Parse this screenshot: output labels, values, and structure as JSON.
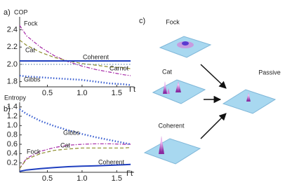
{
  "chart_data": [
    {
      "type": "line",
      "label": "a)",
      "ylabel": "COP",
      "xlabel": "Γt",
      "x": [
        0.1,
        0.2,
        0.4,
        0.6,
        0.8,
        1.0,
        1.2,
        1.4,
        1.6,
        1.7
      ],
      "xlim": [
        0.1,
        1.75
      ],
      "xticks": [
        0.5,
        {
          "value": 1.0,
          "label": "1.0"
        },
        1.5
      ],
      "ylim": [
        1.74,
        2.55
      ],
      "yticks": [
        1.8,
        {
          "value": 2.0,
          "label": "2.0"
        },
        2.2,
        2.4
      ],
      "series": [
        {
          "name": "Fock",
          "color": "#a526a5",
          "dash": "dashdot",
          "width": 1.2,
          "values": [
            2.45,
            2.33,
            2.2,
            2.1,
            2.03,
            1.98,
            1.94,
            1.91,
            1.88,
            1.87
          ]
        },
        {
          "name": "Cat",
          "color": "#8c8c2c",
          "dash": "dashed",
          "width": 1.2,
          "values": [
            2.28,
            2.22,
            2.14,
            2.08,
            2.04,
            2.01,
            1.99,
            1.97,
            1.96,
            1.95
          ]
        },
        {
          "name": "Coherent",
          "color": "#1f3fbf",
          "dash": "solid",
          "width": 2,
          "values": [
            2.04,
            2.04,
            2.04,
            2.04,
            2.04,
            2.04,
            2.04,
            2.04,
            2.04,
            2.04
          ]
        },
        {
          "name": "Carnot",
          "color": "#6c8fb0",
          "dash": "dotted",
          "width": 1.2,
          "values": [
            2.0,
            2.0,
            2.0,
            2.0,
            2.0,
            2.0,
            2.0,
            2.0,
            2.0,
            2.0
          ]
        },
        {
          "name": "Gibbs",
          "color": "#3a5fd0",
          "dash": "dotted",
          "width": 2.5,
          "values": [
            1.87,
            1.86,
            1.85,
            1.84,
            1.83,
            1.82,
            1.8,
            1.78,
            1.77,
            1.76
          ]
        }
      ]
    },
    {
      "type": "line",
      "label": "b)",
      "ylabel": "Entropy",
      "xlabel": "Γt",
      "x": [
        0.1,
        0.2,
        0.4,
        0.6,
        0.8,
        1.0,
        1.2,
        1.4,
        1.6,
        1.7
      ],
      "xlim": [
        0.1,
        1.75
      ],
      "xticks": [
        0.5,
        {
          "value": 1.0,
          "label": "1.0"
        },
        1.5
      ],
      "ylim": [
        0,
        1.5
      ],
      "yticks": [
        0.2,
        0.4,
        0.6,
        0.8,
        {
          "value": 1.0,
          "label": "1.0"
        },
        1.2,
        1.4
      ],
      "series": [
        {
          "name": "Gibbs",
          "color": "#3a5fd0",
          "dash": "dotted",
          "width": 2.5,
          "values": [
            1.35,
            1.25,
            1.1,
            0.99,
            0.9,
            0.82,
            0.75,
            0.69,
            0.63,
            0.6
          ]
        },
        {
          "name": "Fock",
          "color": "#a526a5",
          "dash": "dashdot",
          "width": 1.2,
          "values": [
            0.08,
            0.3,
            0.45,
            0.53,
            0.58,
            0.6,
            0.61,
            0.61,
            0.6,
            0.6
          ]
        },
        {
          "name": "Cat",
          "color": "#8c8c2c",
          "dash": "dashed",
          "width": 1.2,
          "values": [
            0.08,
            0.28,
            0.4,
            0.47,
            0.5,
            0.52,
            0.52,
            0.52,
            0.52,
            0.53
          ]
        },
        {
          "name": "Coherent",
          "color": "#1f3fbf",
          "dash": "solid",
          "width": 2,
          "values": [
            0.02,
            0.05,
            0.08,
            0.1,
            0.12,
            0.13,
            0.14,
            0.15,
            0.16,
            0.17
          ]
        }
      ]
    }
  ],
  "diagram": {
    "label": "c)",
    "states": [
      "Fock",
      "Cat",
      "Coherent"
    ],
    "target": "Passive"
  }
}
